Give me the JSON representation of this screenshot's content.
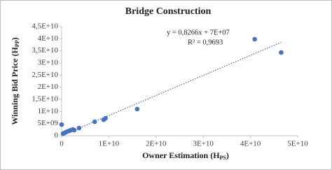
{
  "chart_data": {
    "type": "scatter",
    "title": "Bridge Construction",
    "x_label": {
      "text": "Owner Estimation (H",
      "sub": "PS",
      "end": ")"
    },
    "y_label": {
      "text": "Winning Bid Price (H",
      "sub": "PP",
      "end": ")"
    },
    "color": "#4472c4",
    "x": [
      0,
      300000000,
      590000000,
      890000000,
      1190000000,
      1630000000,
      1930000000,
      2370000000,
      2670000000,
      3700000000,
      7000000000,
      8900000000,
      9300000000,
      16000000000,
      40900000000,
      46500000000
    ],
    "values": [
      4600000000,
      860000000,
      1150000000,
      1440000000,
      1730000000,
      2020000000,
      2310000000,
      2590000000,
      2310000000,
      3170000000,
      5760000000,
      6600000000,
      7200000000,
      11000000000,
      39800000000,
      34300000000
    ],
    "trendline": {
      "slope": 0.8266,
      "intercept": 70000000,
      "color": "#4472c4",
      "equation": "y = 0,8266x + 7E+07",
      "r2_label": "R² = 0,9693"
    },
    "xlim": [
      0,
      50000000000
    ],
    "xticks": [
      0,
      {
        "value": 10000000000,
        "label": "1E+10"
      },
      {
        "value": 20000000000,
        "label": "2E+10"
      },
      {
        "value": 30000000000,
        "label": "3E+10"
      },
      {
        "value": 40000000000,
        "label": "4E+10"
      },
      {
        "value": 50000000000,
        "label": "5E+10"
      }
    ],
    "ylim": [
      0,
      45000000000
    ],
    "yticks": [
      0,
      {
        "value": 5000000000,
        "label": "5E+09"
      },
      {
        "value": 10000000000,
        "label": "1E+10"
      },
      {
        "value": 15000000000,
        "label": "1,5E+10"
      },
      {
        "value": 20000000000,
        "label": "2E+10"
      },
      {
        "value": 25000000000,
        "label": "2,5E+10"
      },
      {
        "value": 30000000000,
        "label": "3E+10"
      },
      {
        "value": 35000000000,
        "label": "3,5E+10"
      },
      {
        "value": 40000000000,
        "label": "4E+10"
      },
      {
        "value": 45000000000,
        "label": "4,5E+10"
      }
    ],
    "grid": false
  }
}
